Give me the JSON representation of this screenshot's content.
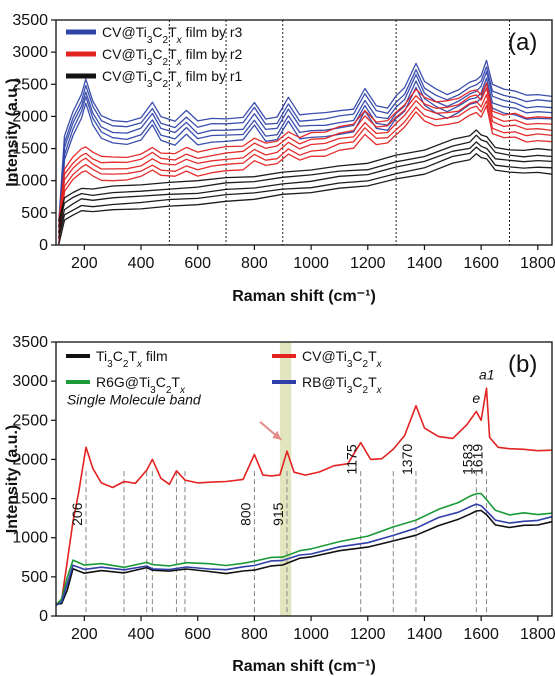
{
  "chart_data": [
    {
      "type": "line",
      "panel_label": "(a)",
      "xlabel": "Raman shift (cm⁻¹)",
      "ylabel": "Intensity (a.u.)",
      "xlim": [
        100,
        1850
      ],
      "ylim": [
        0,
        3500
      ],
      "xticks": [
        "200",
        "400",
        "600",
        "800",
        "1000",
        "1200",
        "1400",
        "1600",
        "1800"
      ],
      "yticks": [
        "0",
        "500",
        "1000",
        "1500",
        "2000",
        "2500",
        "3000",
        "3500"
      ],
      "dotted_vlines": [
        500,
        700,
        900,
        1300,
        1700
      ],
      "legend_position": "top-left",
      "series": [
        {
          "name": "CV@Ti3C2Tx film by r3",
          "color": "#3044a8",
          "count": 5,
          "x": [
            110,
            130,
            160,
            190,
            205,
            230,
            260,
            300,
            350,
            400,
            440,
            470,
            520,
            560,
            600,
            650,
            700,
            760,
            800,
            840,
            880,
            920,
            960,
            1000,
            1050,
            1100,
            1150,
            1190,
            1230,
            1270,
            1300,
            1330,
            1370,
            1400,
            1440,
            1480,
            1520,
            1560,
            1583,
            1600,
            1619,
            1640,
            1680,
            1720,
            1760,
            1800,
            1850
          ],
          "y": [
            200,
            1500,
            1900,
            2150,
            2400,
            2050,
            1850,
            1750,
            1750,
            1800,
            2050,
            1800,
            1750,
            1900,
            1750,
            1780,
            1800,
            1800,
            2050,
            1780,
            1820,
            2100,
            1850,
            1850,
            1880,
            1900,
            1950,
            2250,
            2000,
            1950,
            2150,
            2250,
            2650,
            2350,
            2250,
            2150,
            2250,
            2350,
            2400,
            2450,
            2700,
            2300,
            2250,
            2200,
            2150,
            2150,
            2150
          ]
        },
        {
          "name": "CV@Ti3C2Tx film by r2",
          "color": "#e32222",
          "count": 5,
          "x": [
            110,
            130,
            160,
            190,
            205,
            230,
            260,
            300,
            350,
            400,
            440,
            470,
            520,
            560,
            600,
            650,
            700,
            760,
            800,
            840,
            880,
            920,
            960,
            1000,
            1050,
            1100,
            1150,
            1190,
            1230,
            1270,
            1300,
            1330,
            1370,
            1400,
            1440,
            1480,
            1520,
            1560,
            1583,
            1600,
            1619,
            1640,
            1680,
            1720,
            1760,
            1800,
            1850
          ],
          "y": [
            200,
            1000,
            1200,
            1300,
            1350,
            1250,
            1200,
            1180,
            1200,
            1230,
            1350,
            1250,
            1250,
            1320,
            1270,
            1300,
            1350,
            1350,
            1500,
            1400,
            1450,
            1580,
            1500,
            1550,
            1580,
            1650,
            1700,
            1900,
            1750,
            1750,
            1900,
            2000,
            2250,
            2100,
            2050,
            2050,
            2100,
            2200,
            2250,
            2150,
            2350,
            1900,
            1850,
            1850,
            1800,
            1800,
            1800
          ]
        },
        {
          "name": "CV@Ti3C2Tx film by r1",
          "color": "#111111",
          "count": 5,
          "x": [
            110,
            130,
            160,
            190,
            230,
            300,
            400,
            500,
            600,
            700,
            800,
            900,
            1000,
            1100,
            1200,
            1300,
            1400,
            1500,
            1560,
            1583,
            1600,
            1620,
            1650,
            1700,
            1750,
            1800,
            1850
          ],
          "y": [
            200,
            550,
            650,
            700,
            700,
            720,
            760,
            780,
            820,
            860,
            900,
            950,
            1000,
            1050,
            1100,
            1200,
            1300,
            1450,
            1520,
            1600,
            1550,
            1500,
            1350,
            1300,
            1300,
            1300,
            1300
          ]
        }
      ]
    },
    {
      "type": "line",
      "panel_label": "(b)",
      "xlabel": "Raman shift (cm⁻¹)",
      "ylabel": "Intensity (a.u.)",
      "xlim": [
        100,
        1850
      ],
      "ylim": [
        0,
        3500
      ],
      "xticks": [
        "200",
        "400",
        "600",
        "800",
        "1000",
        "1200",
        "1400",
        "1600",
        "1800"
      ],
      "yticks": [
        "0",
        "500",
        "1000",
        "1500",
        "2000",
        "2500",
        "3000",
        "3500"
      ],
      "dashed_vlines": [
        206,
        340,
        420,
        440,
        525,
        555,
        800,
        915,
        1175,
        1290,
        1370,
        1583,
        1619
      ],
      "peak_labels": [
        {
          "x": 206,
          "text": "206"
        },
        {
          "x": 800,
          "text": "800"
        },
        {
          "x": 915,
          "text": "915"
        },
        {
          "x": 1175,
          "text": "1175"
        },
        {
          "x": 1370,
          "text": "1370"
        },
        {
          "x": 1583,
          "text": "1583"
        },
        {
          "x": 1619,
          "text": "1619"
        }
      ],
      "highlight_band": [
        890,
        930
      ],
      "band_annotation": "Single Molecule band",
      "peak_tags": [
        {
          "text": "a1",
          "x": 1620,
          "y": 3020
        },
        {
          "text": "e",
          "x": 1583,
          "y": 2720
        }
      ],
      "legend_position": "top",
      "series": [
        {
          "name": "Ti3C2Tx film",
          "color": "#111111",
          "x": [
            100,
            120,
            140,
            160,
            200,
            260,
            340,
            420,
            440,
            500,
            560,
            640,
            700,
            760,
            800,
            860,
            900,
            960,
            1000,
            1100,
            1200,
            1290,
            1370,
            1450,
            1520,
            1560,
            1583,
            1600,
            1619,
            1650,
            1700,
            1750,
            1800,
            1850
          ],
          "y": [
            150,
            150,
            350,
            600,
            560,
            580,
            560,
            600,
            590,
            560,
            600,
            560,
            560,
            570,
            600,
            640,
            660,
            720,
            760,
            820,
            880,
            950,
            1050,
            1150,
            1250,
            1300,
            1350,
            1330,
            1300,
            1150,
            1130,
            1150,
            1180,
            1200
          ]
        },
        {
          "name": "CV@Ti3C2Tx",
          "color": "#e32222",
          "x": [
            100,
            120,
            140,
            160,
            180,
            206,
            230,
            260,
            300,
            340,
            380,
            420,
            440,
            470,
            500,
            525,
            555,
            600,
            650,
            700,
            760,
            800,
            830,
            860,
            890,
            915,
            940,
            980,
            1030,
            1080,
            1130,
            1175,
            1210,
            1250,
            1290,
            1330,
            1370,
            1400,
            1450,
            1500,
            1550,
            1583,
            1600,
            1619,
            1630,
            1660,
            1700,
            1750,
            1800,
            1850
          ],
          "y": [
            150,
            200,
            700,
            1200,
            1600,
            2150,
            1900,
            1700,
            1650,
            1700,
            1700,
            1850,
            2000,
            1750,
            1700,
            1850,
            1750,
            1700,
            1720,
            1700,
            1750,
            2050,
            1800,
            1780,
            1820,
            2100,
            1850,
            1800,
            1850,
            1900,
            1950,
            2200,
            2000,
            2000,
            2150,
            2300,
            2700,
            2400,
            2300,
            2250,
            2450,
            2600,
            2500,
            2900,
            2300,
            2150,
            2150,
            2130,
            2120,
            2100
          ]
        },
        {
          "name": "R6G@Ti3C2Tx",
          "color": "#1c9a38",
          "x": [
            100,
            120,
            140,
            160,
            200,
            260,
            340,
            420,
            440,
            500,
            560,
            640,
            700,
            760,
            800,
            860,
            900,
            960,
            1000,
            1100,
            1200,
            1290,
            1370,
            1450,
            1520,
            1560,
            1583,
            1600,
            1619,
            1650,
            1700,
            1750,
            1800,
            1850
          ],
          "y": [
            150,
            200,
            500,
            700,
            650,
            660,
            640,
            680,
            670,
            640,
            690,
            650,
            650,
            660,
            700,
            740,
            770,
            830,
            870,
            950,
            1030,
            1120,
            1230,
            1350,
            1450,
            1520,
            1580,
            1560,
            1500,
            1350,
            1300,
            1300,
            1300,
            1300
          ]
        },
        {
          "name": "RB@Ti3C2Tx",
          "color": "#2f3ea8",
          "x": [
            100,
            120,
            140,
            160,
            200,
            260,
            340,
            420,
            440,
            500,
            560,
            640,
            700,
            760,
            800,
            860,
            900,
            960,
            1000,
            1100,
            1200,
            1290,
            1370,
            1450,
            1520,
            1560,
            1583,
            1600,
            1619,
            1650,
            1700,
            1750,
            1800,
            1850
          ],
          "y": [
            150,
            180,
            420,
            630,
            600,
            610,
            590,
            630,
            620,
            590,
            640,
            600,
            600,
            610,
            650,
            690,
            710,
            770,
            810,
            880,
            950,
            1030,
            1130,
            1240,
            1330,
            1380,
            1430,
            1400,
            1360,
            1220,
            1200,
            1210,
            1230,
            1250
          ]
        }
      ]
    }
  ]
}
